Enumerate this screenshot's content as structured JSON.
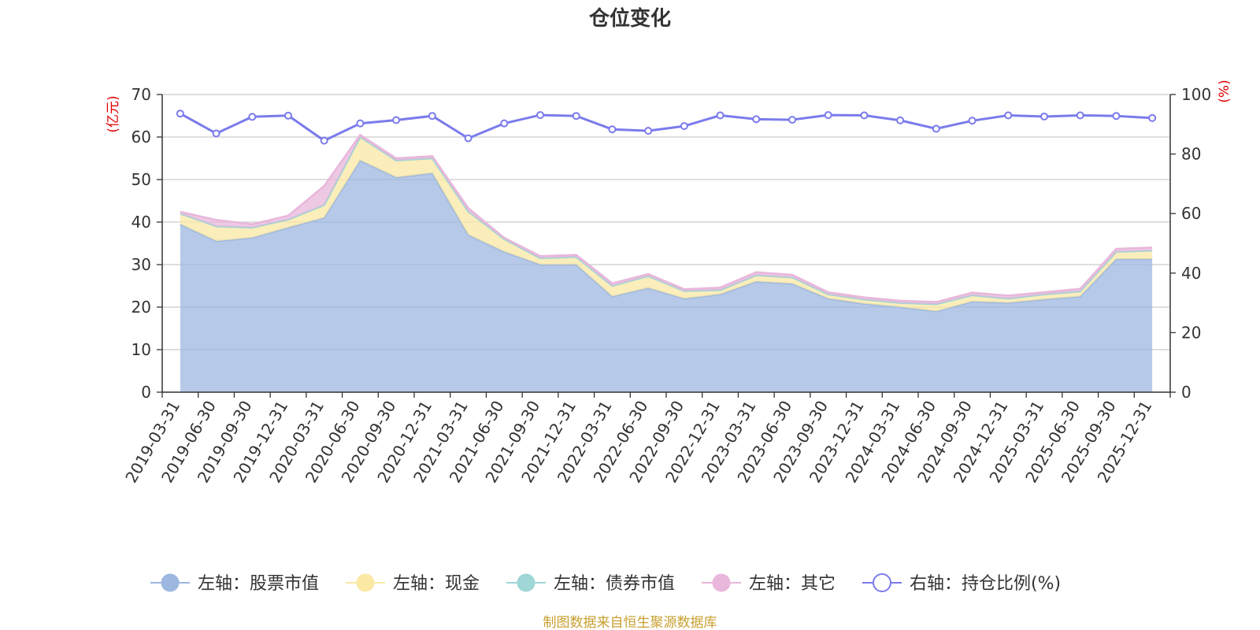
{
  "chart_data": {
    "type": "area",
    "title": "仓位变化",
    "left_unit": "(亿元)",
    "right_unit": "(%)",
    "categories": [
      "2019-03-31",
      "2019-06-30",
      "2019-09-30",
      "2019-12-31",
      "2020-03-31",
      "2020-06-30",
      "2020-09-30",
      "2020-12-31",
      "2021-03-31",
      "2021-06-30",
      "2021-09-30",
      "2021-12-31",
      "2022-03-31",
      "2022-06-30",
      "2022-09-30",
      "2022-12-31",
      "2023-03-31",
      "2023-06-30",
      "2023-09-30",
      "2023-12-31",
      "2024-03-31",
      "2024-06-30",
      "2024-09-30",
      "2024-12-31",
      "2025-03-31",
      "2025-06-30",
      "2025-09-30",
      "2025-12-31"
    ],
    "left_axis": {
      "min": 0,
      "max": 70,
      "ticks": [
        0,
        10,
        20,
        30,
        40,
        50,
        60,
        70
      ]
    },
    "right_axis": {
      "min": 0,
      "max": 100,
      "ticks": [
        0,
        20,
        40,
        60,
        80,
        100
      ]
    },
    "series": [
      {
        "name": "左轴：股票市值",
        "axis": "left",
        "stack": true,
        "color": "#9db7e0",
        "values": [
          39.5,
          35.5,
          36.3,
          38.7,
          41.0,
          54.5,
          50.5,
          51.5,
          37.0,
          33.0,
          30.0,
          30.0,
          22.5,
          24.5,
          22.0,
          23.0,
          26.0,
          25.5,
          22.0,
          20.8,
          20.0,
          19.0,
          21.3,
          21.0,
          21.8,
          22.5,
          31.3,
          31.3
        ]
      },
      {
        "name": "左轴：现金",
        "axis": "left",
        "stack": true,
        "color": "#fae8a4",
        "values": [
          2.5,
          3.5,
          2.4,
          1.9,
          3.0,
          5.5,
          4.0,
          3.5,
          5.5,
          3.0,
          1.5,
          1.8,
          2.5,
          2.8,
          1.8,
          1.0,
          1.5,
          1.5,
          1.0,
          1.0,
          1.0,
          1.7,
          1.5,
          1.0,
          1.2,
          1.2,
          1.7,
          2.0
        ]
      },
      {
        "name": "左轴：债券市值",
        "axis": "left",
        "stack": true,
        "color": "#9fd6d6",
        "values": [
          0,
          0,
          0,
          0,
          0,
          0,
          0,
          0,
          0,
          0,
          0,
          0,
          0,
          0,
          0,
          0,
          0,
          0,
          0,
          0,
          0,
          0,
          0,
          0,
          0,
          0,
          0,
          0
        ]
      },
      {
        "name": "左轴：其它",
        "axis": "left",
        "stack": true,
        "color": "#e8b7db",
        "values": [
          0.4,
          1.5,
          0.8,
          0.9,
          4.5,
          0.5,
          0.5,
          0.5,
          0.8,
          0.3,
          0.5,
          0.5,
          0.6,
          0.5,
          0.4,
          0.6,
          0.7,
          0.6,
          0.5,
          0.5,
          0.5,
          0.5,
          0.6,
          0.7,
          0.5,
          0.6,
          0.7,
          0.7
        ]
      },
      {
        "name": "右轴：持仓比例(%)",
        "axis": "right",
        "stack": false,
        "color": "#7b7bec",
        "values": [
          93.6,
          86.9,
          92.5,
          92.9,
          84.5,
          90.3,
          91.4,
          92.8,
          85.3,
          90.3,
          93.1,
          92.8,
          88.3,
          87.8,
          89.4,
          93.0,
          91.7,
          91.5,
          93.1,
          93.0,
          91.3,
          88.5,
          91.2,
          93.0,
          92.6,
          93.0,
          92.8,
          92.1
        ]
      }
    ]
  },
  "source_note": "制图数据来自恒生聚源数据库"
}
